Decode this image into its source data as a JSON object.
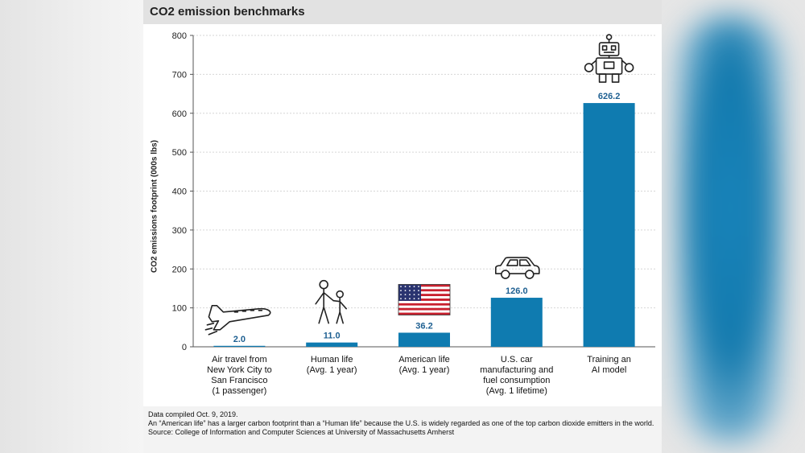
{
  "chart_data": {
    "type": "bar",
    "title": "CO2 emission benchmarks",
    "ylabel": "CO2 emissions footprint (000s lbs)",
    "xlabel": "",
    "ylim": [
      0,
      800
    ],
    "yticks": [
      0,
      100,
      200,
      300,
      400,
      500,
      600,
      700,
      800
    ],
    "grid": true,
    "categories": [
      "Air travel from New York City to San Francisco (1 passenger)",
      "Human life (Avg. 1 year)",
      "American life (Avg. 1 year)",
      "U.S. car manufacturing and fuel consumption (Avg. 1 lifetime)",
      "Training an AI model"
    ],
    "category_lines": [
      [
        "Air travel from",
        "New York City to",
        "San Francisco",
        "(1 passenger)"
      ],
      [
        "Human life",
        "(Avg. 1 year)"
      ],
      [
        "American life",
        "(Avg. 1 year)"
      ],
      [
        "U.S. car",
        "manufacturing and",
        "fuel consumption",
        "(Avg. 1 lifetime)"
      ],
      [
        "Training an",
        "AI model"
      ]
    ],
    "values": [
      2.0,
      11.0,
      36.2,
      126.0,
      626.2
    ],
    "value_labels": [
      "2.0",
      "11.0",
      "36.2",
      "126.0",
      "626.2"
    ],
    "icons": [
      "airplane-icon",
      "parent-child-icon",
      "us-flag-icon",
      "car-icon",
      "robot-icon"
    ],
    "bar_color": "#0f7bb0",
    "label_color": "#1d5f91"
  },
  "notes": {
    "compiled": "Data compiled Oct. 9, 2019.",
    "note": "An “American life” has a larger carbon footprint than a “Human life” because the U.S. is widely regarded as one of the top carbon dioxide emitters in the world.",
    "source": "Source: College of Information and Computer Sciences at University of Massachusetts Amherst"
  }
}
